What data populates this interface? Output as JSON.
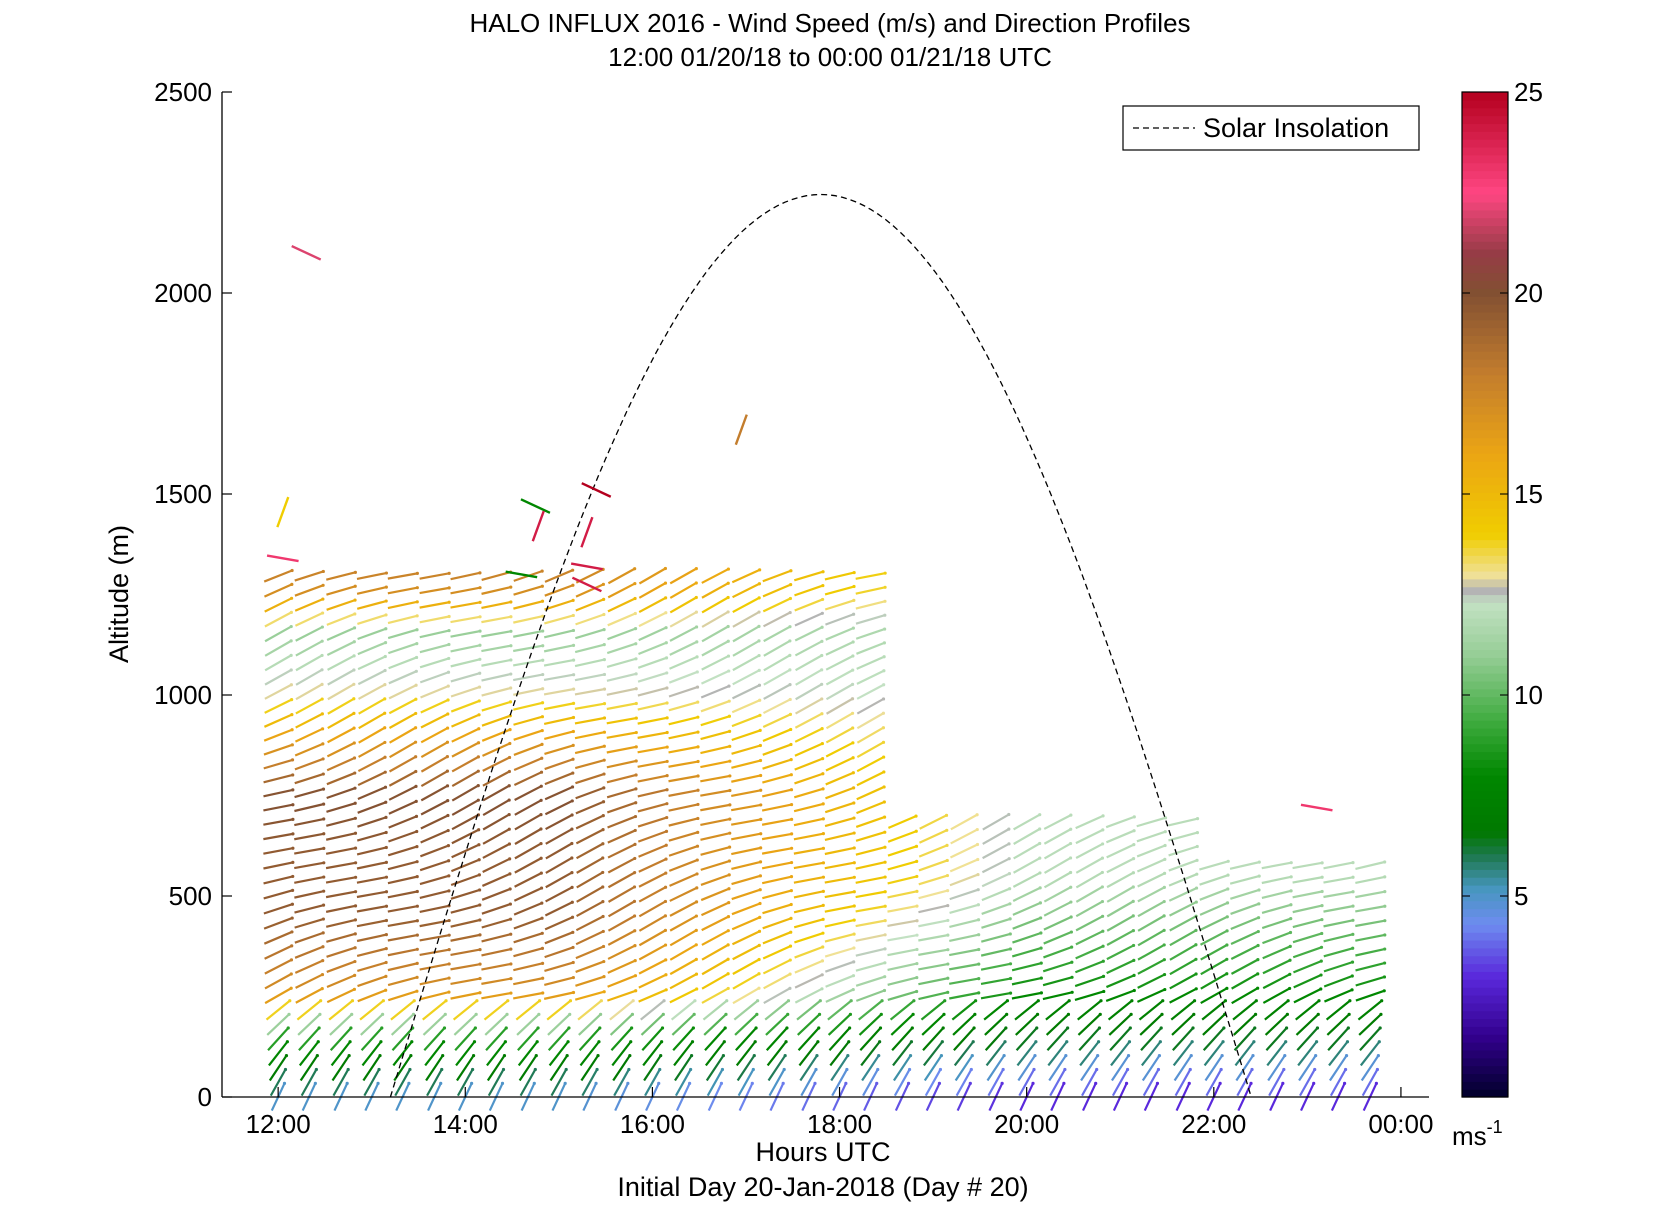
{
  "chart_data": {
    "type": "quiver",
    "title": "HALO INFLUX 2016 - Wind Speed (m/s) and Direction Profiles",
    "subtitle": "12:00 01/20/18 to 00:00 01/21/18  UTC",
    "xlabel": "Hours UTC",
    "xlabel2": "Initial Day 20-Jan-2018 (Day # 20)",
    "ylabel": "Altitude (m)",
    "xlim_hours": [
      11.4,
      24.3
    ],
    "ylim": [
      0,
      2500
    ],
    "x_ticks": [
      {
        "value": 12,
        "label": "12:00"
      },
      {
        "value": 14,
        "label": "14:00"
      },
      {
        "value": 16,
        "label": "16:00"
      },
      {
        "value": 18,
        "label": "18:00"
      },
      {
        "value": 20,
        "label": "20:00"
      },
      {
        "value": 22,
        "label": "22:00"
      },
      {
        "value": 24,
        "label": "00:00"
      }
    ],
    "y_ticks": [
      0,
      500,
      1000,
      1500,
      2000,
      2500
    ],
    "colorbar": {
      "range": [
        0,
        25
      ],
      "ticks": [
        5,
        10,
        15,
        20,
        25
      ],
      "unit_label": "ms",
      "unit_exponent": "-1"
    },
    "legend": {
      "position": "top-right",
      "entries": [
        {
          "name": "Solar Insolation",
          "style": "dashed",
          "color": "#000000"
        }
      ]
    },
    "solar_insolation": {
      "start_hour": 13.2,
      "end_hour": 22.4,
      "peak_hour": 17.8,
      "peak_altitude": 2245
    },
    "profile_times_hours": [
      12.0,
      12.33,
      12.67,
      13.0,
      13.33,
      13.67,
      14.0,
      14.33,
      14.67,
      15.0,
      15.33,
      15.67,
      16.0,
      16.33,
      16.67,
      17.0,
      17.33,
      17.67,
      18.0,
      18.33,
      18.67,
      19.0,
      19.33,
      19.67,
      20.0,
      20.33,
      20.67,
      21.0,
      21.33,
      21.67,
      22.0,
      22.33,
      22.67,
      23.0,
      23.33,
      23.67
    ],
    "max_altitude_by_time": [
      {
        "until_hour": 18.4,
        "altitude": 1320
      },
      {
        "until_hour": 21.7,
        "altitude": 700
      },
      {
        "until_hour": 24.0,
        "altitude": 610
      }
    ],
    "speed_profile_early": [
      {
        "altitude": 0,
        "speed": 5
      },
      {
        "altitude": 150,
        "speed": 9
      },
      {
        "altitude": 260,
        "speed": 17
      },
      {
        "altitude": 450,
        "speed": 19.5
      },
      {
        "altitude": 600,
        "speed": 19.5
      },
      {
        "altitude": 750,
        "speed": 20
      },
      {
        "altitude": 900,
        "speed": 16
      },
      {
        "altitude": 1000,
        "speed": 13
      },
      {
        "altitude": 1150,
        "speed": 11
      },
      {
        "altitude": 1250,
        "speed": 17
      },
      {
        "altitude": 1320,
        "speed": 18
      }
    ],
    "speed_profile_late": [
      {
        "altitude": 0,
        "speed": 3
      },
      {
        "altitude": 120,
        "speed": 6
      },
      {
        "altitude": 250,
        "speed": 8
      },
      {
        "altitude": 400,
        "speed": 10
      },
      {
        "altitude": 550,
        "speed": 12
      },
      {
        "altitude": 700,
        "speed": 12
      }
    ],
    "isolated_barbs": [
      {
        "hour": 12.3,
        "altitude": 2100,
        "speed": 22
      },
      {
        "hour": 12.05,
        "altitude": 1455,
        "speed": 14
      },
      {
        "hour": 12.05,
        "altitude": 1340,
        "speed": 23
      },
      {
        "hour": 14.75,
        "altitude": 1470,
        "speed": 8
      },
      {
        "hour": 14.78,
        "altitude": 1420,
        "speed": 24
      },
      {
        "hour": 14.6,
        "altitude": 1300,
        "speed": 8
      },
      {
        "hour": 15.4,
        "altitude": 1510,
        "speed": 25
      },
      {
        "hour": 15.3,
        "altitude": 1405,
        "speed": 24
      },
      {
        "hour": 15.3,
        "altitude": 1320,
        "speed": 24
      },
      {
        "hour": 15.3,
        "altitude": 1275,
        "speed": 24
      },
      {
        "hour": 16.95,
        "altitude": 1660,
        "speed": 18
      },
      {
        "hour": 23.1,
        "altitude": 720,
        "speed": 23
      }
    ]
  }
}
